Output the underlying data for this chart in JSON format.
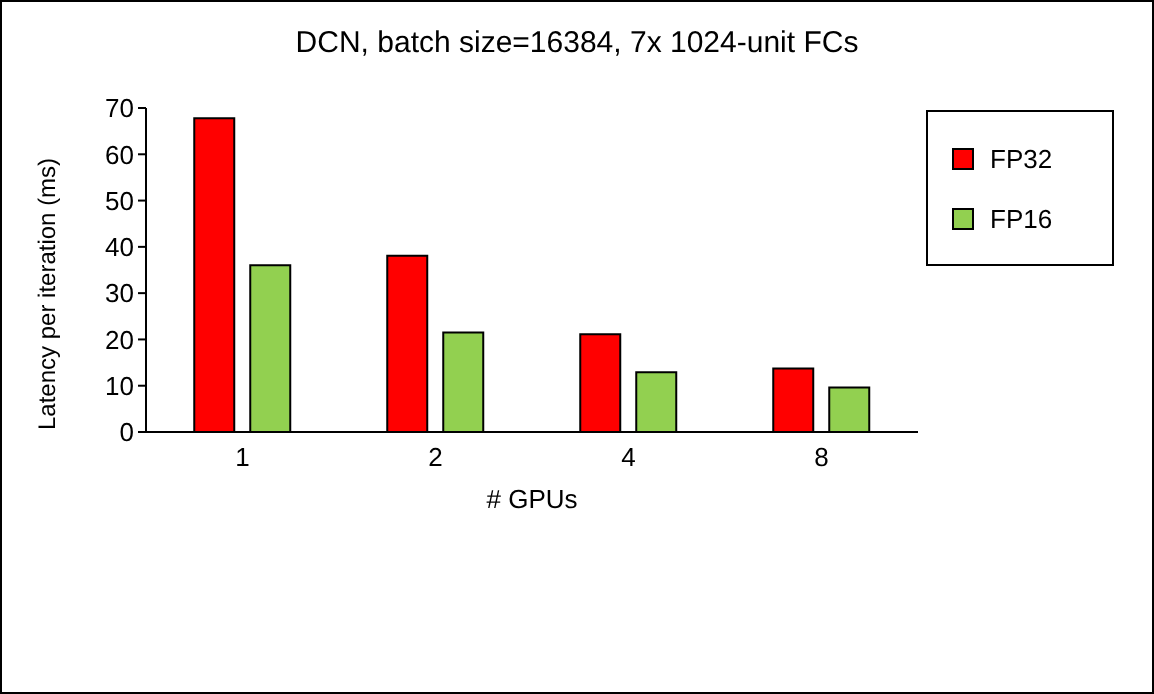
{
  "chart_data": {
    "type": "bar",
    "title": "DCN, batch size=16384, 7x 1024-unit FCs",
    "xlabel": "# GPUs",
    "ylabel": "Latency per iteration (ms)",
    "categories": [
      "1",
      "2",
      "4",
      "8"
    ],
    "series": [
      {
        "name": "FP32",
        "color": "#ff0000",
        "values": [
          67.8,
          38.1,
          21.1,
          13.7
        ]
      },
      {
        "name": "FP16",
        "color": "#92d050",
        "values": [
          36,
          21.5,
          12.9,
          9.6
        ]
      }
    ],
    "ylim": [
      0,
      70
    ],
    "yticks": [
      0,
      10,
      20,
      30,
      40,
      50,
      60,
      70
    ],
    "grid": false,
    "legend": "top right"
  }
}
